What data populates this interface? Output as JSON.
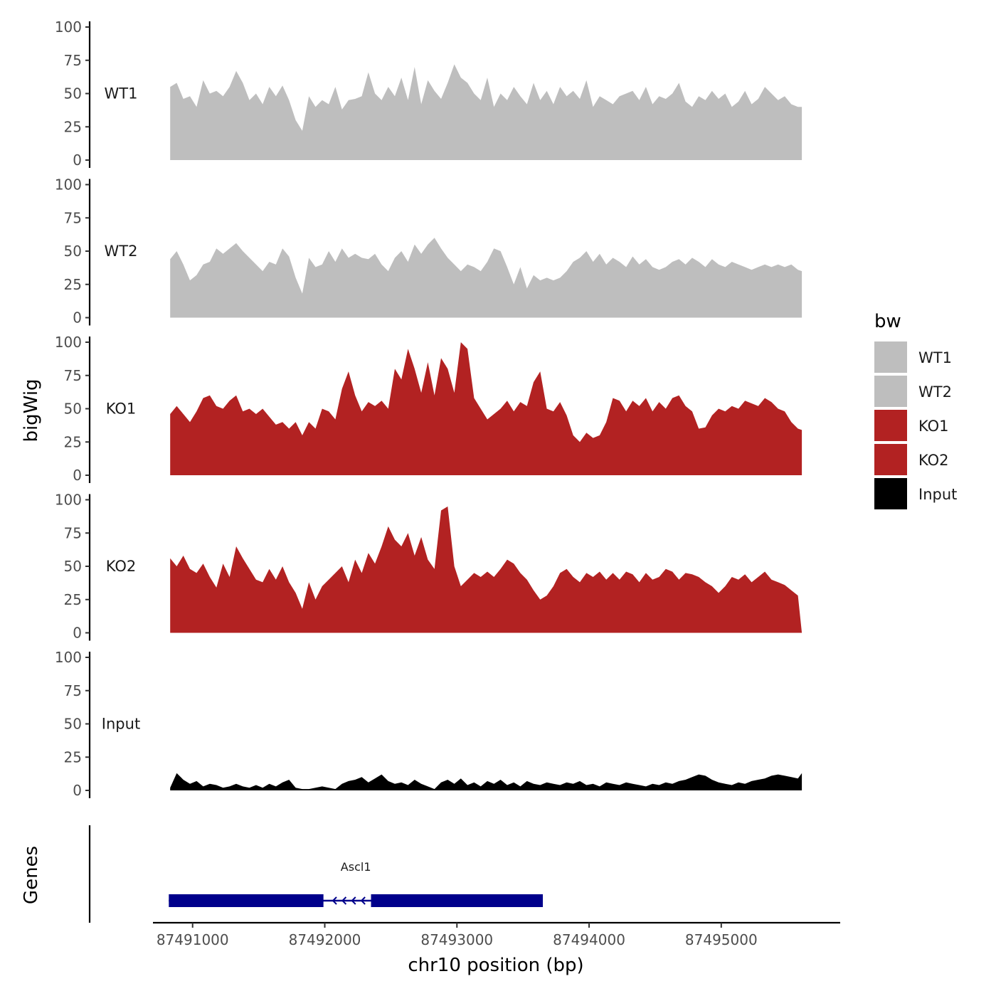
{
  "chart_data": {
    "type": "area",
    "chromosome": "chr10",
    "xlabel": "chr10 position (bp)",
    "ylabel": "bigWig",
    "xlim": [
      87490700,
      87495900
    ],
    "ylim": [
      0,
      100
    ],
    "x_ticks": [
      87491000,
      87492000,
      87493000,
      87494000,
      87495000
    ],
    "x_tick_labels": [
      "87491000",
      "87492000",
      "87493000",
      "87494000",
      "87495000"
    ],
    "y_ticks": [
      0,
      25,
      50,
      75,
      100
    ],
    "y_tick_labels": [
      "0",
      "25",
      "50",
      "75",
      "100"
    ],
    "legend": {
      "title": "bw",
      "position": "right"
    },
    "x": [
      87490830,
      87490880,
      87490930,
      87490980,
      87491030,
      87491080,
      87491130,
      87491180,
      87491230,
      87491280,
      87491330,
      87491380,
      87491430,
      87491480,
      87491530,
      87491580,
      87491630,
      87491680,
      87491730,
      87491780,
      87491830,
      87491880,
      87491930,
      87491980,
      87492030,
      87492080,
      87492130,
      87492180,
      87492230,
      87492280,
      87492330,
      87492380,
      87492430,
      87492480,
      87492530,
      87492580,
      87492630,
      87492680,
      87492730,
      87492780,
      87492830,
      87492880,
      87492930,
      87492980,
      87493030,
      87493080,
      87493130,
      87493180,
      87493230,
      87493280,
      87493330,
      87493380,
      87493430,
      87493480,
      87493530,
      87493580,
      87493630,
      87493680,
      87493730,
      87493780,
      87493830,
      87493880,
      87493930,
      87493980,
      87494030,
      87494080,
      87494130,
      87494180,
      87494230,
      87494280,
      87494330,
      87494380,
      87494430,
      87494480,
      87494530,
      87494580,
      87494630,
      87494680,
      87494730,
      87494780,
      87494830,
      87494880,
      87494930,
      87494980,
      87495030,
      87495080,
      87495130,
      87495180,
      87495230,
      87495280,
      87495330,
      87495380,
      87495430,
      87495480,
      87495530,
      87495580,
      87495610
    ],
    "series": [
      {
        "name": "WT1",
        "color": "#bebebe",
        "values": [
          55,
          58,
          46,
          48,
          40,
          60,
          50,
          52,
          48,
          55,
          67,
          58,
          45,
          50,
          42,
          55,
          48,
          56,
          45,
          30,
          22,
          48,
          40,
          45,
          42,
          55,
          38,
          45,
          46,
          48,
          66,
          50,
          45,
          55,
          48,
          62,
          45,
          70,
          42,
          60,
          52,
          46,
          58,
          72,
          62,
          58,
          50,
          45,
          62,
          40,
          50,
          45,
          55,
          48,
          42,
          58,
          45,
          52,
          42,
          55,
          48,
          52,
          46,
          60,
          40,
          48,
          45,
          42,
          48,
          50,
          52,
          45,
          55,
          42,
          48,
          46,
          50,
          58,
          44,
          40,
          48,
          45,
          52,
          46,
          50,
          40,
          44,
          52,
          42,
          46,
          55,
          50,
          45,
          48,
          42,
          40,
          40
        ]
      },
      {
        "name": "WT2",
        "color": "#bebebe",
        "values": [
          44,
          50,
          40,
          28,
          32,
          40,
          42,
          52,
          48,
          52,
          56,
          50,
          45,
          40,
          35,
          42,
          40,
          52,
          46,
          30,
          18,
          45,
          38,
          40,
          50,
          42,
          52,
          45,
          48,
          45,
          44,
          48,
          40,
          35,
          45,
          50,
          42,
          55,
          48,
          55,
          60,
          52,
          45,
          40,
          35,
          40,
          38,
          35,
          42,
          52,
          50,
          38,
          25,
          38,
          22,
          32,
          28,
          30,
          28,
          30,
          35,
          42,
          45,
          50,
          42,
          48,
          40,
          45,
          42,
          38,
          46,
          40,
          44,
          38,
          36,
          38,
          42,
          44,
          40,
          45,
          42,
          38,
          44,
          40,
          38,
          42,
          40,
          38,
          36,
          38,
          40,
          38,
          40,
          38,
          40,
          36,
          35
        ]
      },
      {
        "name": "KO1",
        "color": "#b22222",
        "values": [
          46,
          52,
          46,
          40,
          48,
          58,
          60,
          52,
          50,
          56,
          60,
          48,
          50,
          46,
          50,
          44,
          38,
          40,
          35,
          40,
          30,
          40,
          35,
          50,
          48,
          42,
          65,
          78,
          60,
          48,
          55,
          52,
          56,
          50,
          80,
          72,
          95,
          80,
          62,
          85,
          60,
          88,
          80,
          62,
          100,
          95,
          58,
          50,
          42,
          46,
          50,
          56,
          48,
          55,
          52,
          70,
          78,
          50,
          48,
          55,
          45,
          30,
          25,
          32,
          28,
          30,
          40,
          58,
          56,
          48,
          56,
          52,
          58,
          48,
          55,
          50,
          58,
          60,
          52,
          48,
          35,
          36,
          45,
          50,
          48,
          52,
          50,
          56,
          54,
          52,
          58,
          55,
          50,
          48,
          40,
          35,
          34
        ]
      },
      {
        "name": "KO2",
        "color": "#b22222",
        "values": [
          56,
          50,
          58,
          48,
          45,
          52,
          42,
          34,
          52,
          42,
          65,
          56,
          48,
          40,
          38,
          48,
          40,
          50,
          38,
          30,
          18,
          38,
          25,
          35,
          40,
          45,
          50,
          38,
          55,
          45,
          60,
          52,
          65,
          80,
          70,
          65,
          75,
          58,
          72,
          55,
          48,
          92,
          95,
          50,
          35,
          40,
          45,
          42,
          46,
          42,
          48,
          55,
          52,
          45,
          40,
          32,
          25,
          28,
          35,
          45,
          48,
          42,
          38,
          45,
          42,
          46,
          40,
          45,
          40,
          46,
          44,
          38,
          45,
          40,
          42,
          48,
          46,
          40,
          45,
          44,
          42,
          38,
          35,
          30,
          35,
          42,
          40,
          44,
          38,
          42,
          46,
          40,
          38,
          36,
          32,
          28,
          0
        ]
      },
      {
        "name": "Input",
        "color": "#000000",
        "values": [
          2,
          13,
          8,
          5,
          7,
          3,
          5,
          4,
          2,
          3,
          5,
          3,
          2,
          4,
          2,
          5,
          3,
          6,
          8,
          2,
          1,
          1,
          2,
          3,
          2,
          1,
          5,
          7,
          8,
          10,
          6,
          9,
          12,
          7,
          5,
          6,
          4,
          8,
          5,
          3,
          1,
          6,
          8,
          5,
          9,
          4,
          6,
          3,
          7,
          5,
          8,
          4,
          6,
          3,
          7,
          5,
          4,
          6,
          5,
          4,
          6,
          5,
          7,
          4,
          5,
          3,
          6,
          5,
          4,
          6,
          5,
          4,
          3,
          5,
          4,
          6,
          5,
          7,
          8,
          10,
          12,
          11,
          8,
          6,
          5,
          4,
          6,
          5,
          7,
          8,
          9,
          11,
          12,
          11,
          10,
          9,
          13
        ]
      }
    ],
    "genes": {
      "axis_label": "Genes",
      "items": [
        {
          "name": "Ascl1",
          "strand": "-",
          "color": "#00008b",
          "start": 87490820,
          "end": 87493650,
          "exons": [
            [
              87490820,
              87491990
            ],
            [
              87492350,
              87493650
            ]
          ]
        }
      ]
    }
  }
}
